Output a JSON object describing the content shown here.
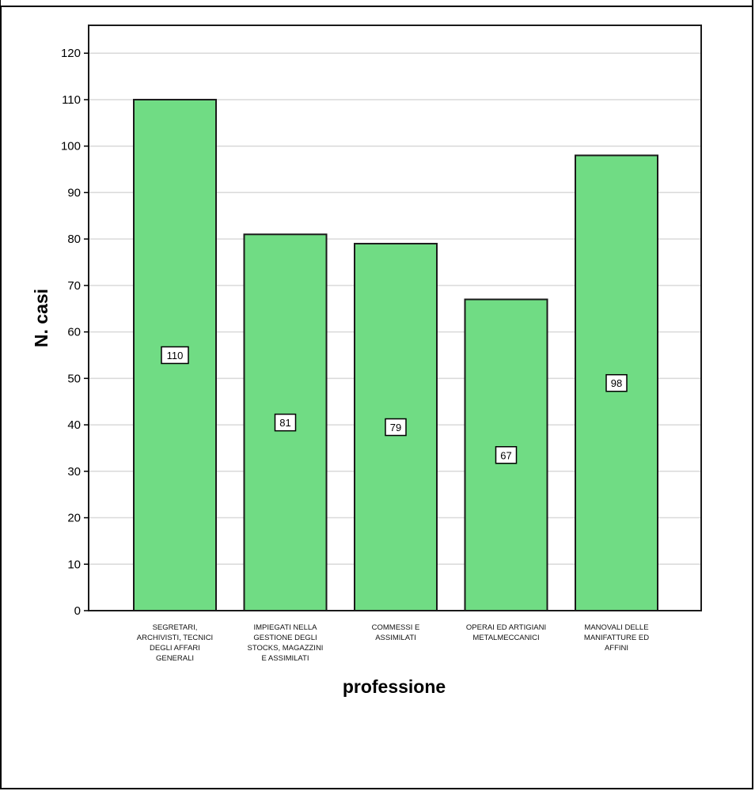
{
  "chart_data": {
    "type": "bar",
    "title": "",
    "xlabel": "professione",
    "ylabel": "N. casi",
    "ylim": [
      0,
      126
    ],
    "yticks": [
      0,
      10,
      20,
      30,
      40,
      50,
      60,
      70,
      80,
      90,
      100,
      110,
      120
    ],
    "grid": true,
    "legend": "none",
    "categories": [
      [
        "SEGRETARI,",
        "ARCHIVISTI, TECNICI",
        "DEGLI AFFARI",
        "GENERALI"
      ],
      [
        "IMPIEGATI NELLA",
        "GESTIONE DEGLI",
        "STOCKS, MAGAZZINI",
        "E ASSIMILATI"
      ],
      [
        "COMMESSI E",
        "ASSIMILATI"
      ],
      [
        "OPERAI ED ARTIGIANI",
        "METALMECCANICI"
      ],
      [
        "MANOVALI DELLE",
        "MANIFATTURE ED",
        "AFFINI"
      ]
    ],
    "values": [
      110,
      81,
      79,
      67,
      98
    ],
    "data_labels": [
      "110",
      "81",
      "79",
      "67",
      "98"
    ],
    "colors": {
      "bar_fill": "#70dc84",
      "bar_stroke": "#1a1a1a",
      "grid": "#d9d9d9",
      "plot_border": "#1a1a1a",
      "label_box_fill": "#ffffff",
      "label_box_stroke": "#000000"
    }
  }
}
